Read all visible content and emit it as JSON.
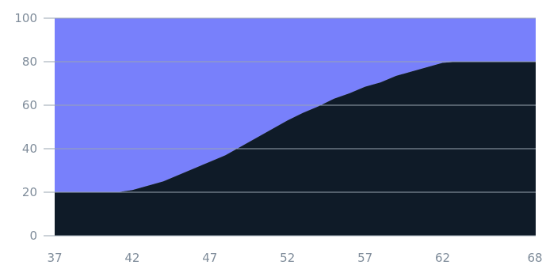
{
  "chart_data": {
    "type": "area",
    "title": "",
    "xlabel": "",
    "ylabel": "",
    "xlim": [
      37,
      68
    ],
    "ylim": [
      0,
      100
    ],
    "x_ticks": [
      37,
      42,
      47,
      52,
      57,
      62,
      68
    ],
    "y_ticks": [
      0,
      20,
      40,
      60,
      80,
      100
    ],
    "grid": "horizontal",
    "stacked_percent": true,
    "colors": {
      "top": "#7880fb",
      "bottom": "#0f1b28",
      "grid": "#9aa4b0"
    },
    "x": [
      37,
      38,
      39,
      40,
      41,
      42,
      43,
      44,
      45,
      46,
      47,
      48,
      49,
      50,
      51,
      52,
      53,
      54,
      55,
      56,
      57,
      58,
      59,
      60,
      61,
      62,
      63,
      64,
      65,
      66,
      67,
      68
    ],
    "series": [
      {
        "values": [
          20,
          20,
          20,
          20,
          20,
          21,
          23,
          25,
          28,
          31,
          34,
          37,
          41,
          45,
          49,
          53,
          56.5,
          59.5,
          63,
          65.5,
          68.5,
          70.5,
          73.5,
          75.5,
          77.5,
          79.5,
          80,
          80,
          80,
          80,
          80,
          80
        ]
      },
      {
        "values": [
          80,
          80,
          80,
          80,
          80,
          79,
          77,
          75,
          72,
          69,
          66,
          63,
          59,
          55,
          51,
          47,
          43.5,
          40.5,
          37,
          34.5,
          31.5,
          29.5,
          26.5,
          24.5,
          22.5,
          20.5,
          20,
          20,
          20,
          20,
          20,
          20
        ]
      }
    ]
  }
}
